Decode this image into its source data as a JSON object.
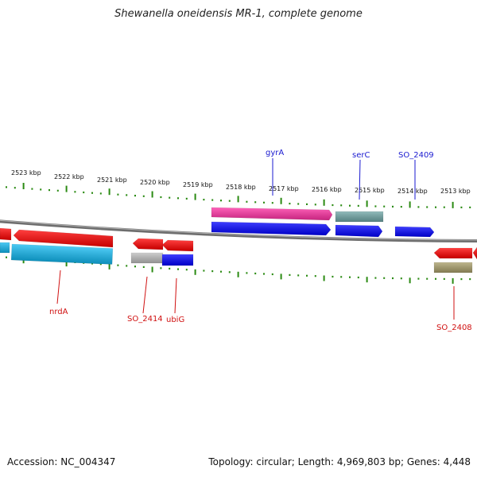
{
  "title": "Shewanella oneidensis MR-1, complete genome",
  "footer": {
    "accession": "Accession: NC_004347",
    "stats": "Topology: circular; Length: 4,969,803 bp; Genes: 4,448"
  },
  "colors": {
    "red": "#ff0000",
    "blue": "#0000ff",
    "pink": "#ff2fa3",
    "cyan": "#12b8f0",
    "gray": "#bdbdbd",
    "khaki": "#a99f6a",
    "teal": "#6fa6a6",
    "tick": "#2a8a12",
    "backbone": "#8a8a8a",
    "label_top": "#1a1ad0",
    "label_bottom": "#d01010"
  },
  "kbp_labels": [
    "2523 kbp",
    "2522 kbp",
    "2521 kbp",
    "2520 kbp",
    "2519 kbp",
    "2518 kbp",
    "2517 kbp",
    "2516 kbp",
    "2515 kbp",
    "2514 kbp",
    "2513 kbp"
  ],
  "genes_top": [
    {
      "name": "gyrA",
      "strand": "forward",
      "color": "pink"
    },
    {
      "name": "gyrA",
      "strand": "forward",
      "color": "blue"
    },
    {
      "name": "serC",
      "strand": "forward",
      "color": "teal"
    },
    {
      "name": "serC",
      "strand": "forward",
      "color": "blue"
    },
    {
      "name": "SO_2409",
      "strand": "forward",
      "color": "blue"
    }
  ],
  "genes_bottom": [
    {
      "name": "nrdA",
      "strand": "reverse",
      "color": "red"
    },
    {
      "name": "nrdA",
      "strand": "reverse",
      "color": "cyan"
    },
    {
      "name": "SO_2414",
      "strand": "reverse",
      "color": "red"
    },
    {
      "name": "SO_2414",
      "strand": "reverse",
      "color": "gray"
    },
    {
      "name": "ubiG",
      "strand": "reverse",
      "color": "red"
    },
    {
      "name": "ubiG",
      "strand": "reverse",
      "color": "blue"
    },
    {
      "name": "SO_2408",
      "strand": "reverse",
      "color": "red"
    },
    {
      "name": "SO_2408",
      "strand": "reverse",
      "color": "khaki"
    }
  ],
  "labels": {
    "gyrA": "gyrA",
    "serC": "serC",
    "SO_2409": "SO_2409",
    "nrdA": "nrdA",
    "SO_2414": "SO_2414",
    "ubiG": "ubiG",
    "SO_2408": "SO_2408"
  }
}
